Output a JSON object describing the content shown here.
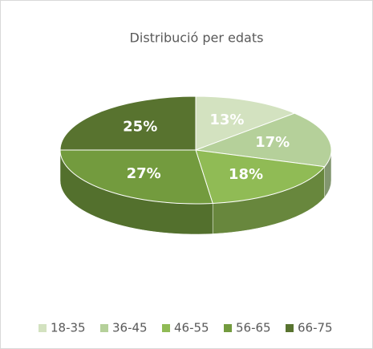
{
  "chart_data": {
    "type": "pie3d",
    "title": "Distribució per edats",
    "categories": [
      "18-35",
      "36-45",
      "46-55",
      "56-65",
      "66-75"
    ],
    "values": [
      13,
      17,
      18,
      27,
      25
    ],
    "value_labels": [
      "13%",
      "17%",
      "18%",
      "27%",
      "25%"
    ],
    "colors": [
      "#d3e2c0",
      "#b5d09a",
      "#90bb55",
      "#739b3e",
      "#58732f"
    ],
    "legend": "bottom"
  }
}
